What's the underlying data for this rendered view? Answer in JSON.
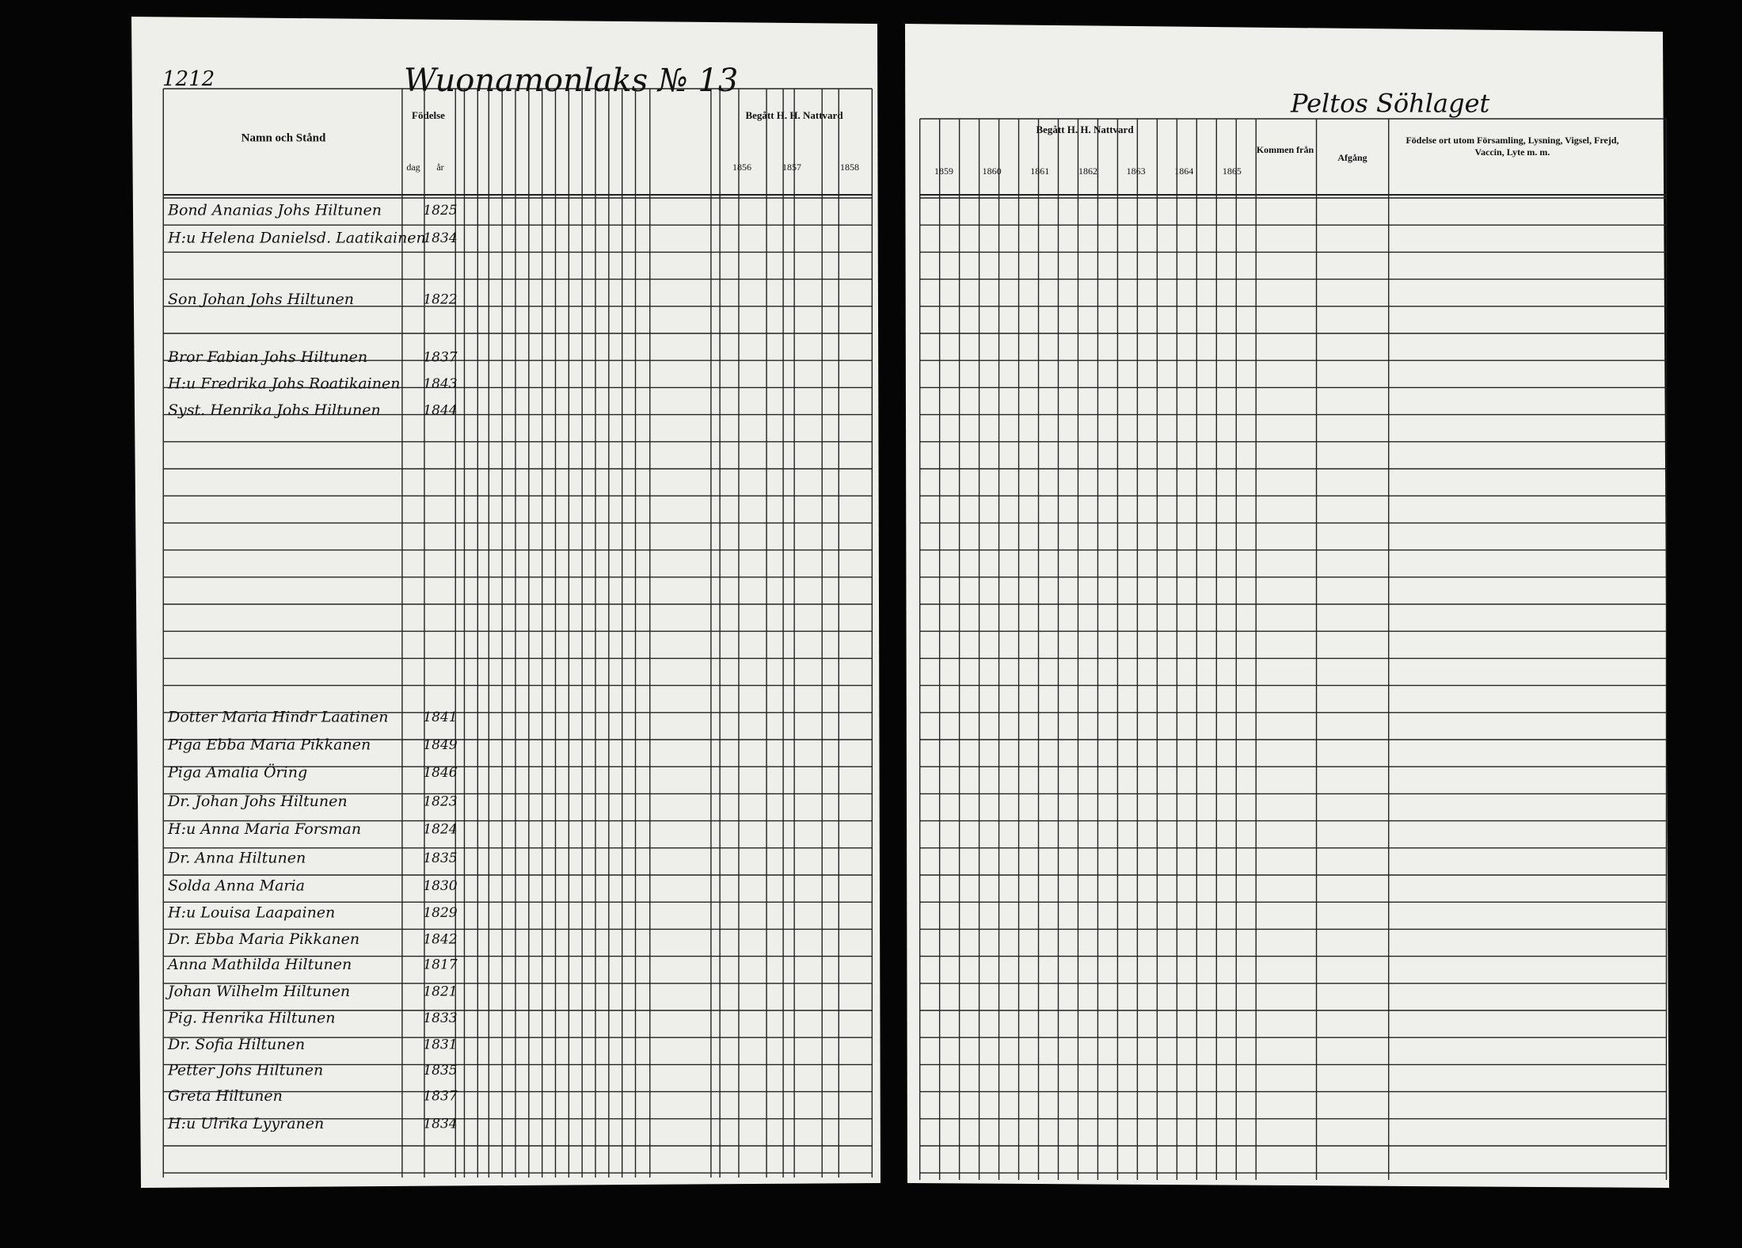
{
  "header": {
    "page_number": "1212",
    "village": "Wuonamonlaks № 13",
    "household": "Peltos Söhlaget"
  },
  "left_columns": {
    "name": "Namn och Stånd",
    "birth": "Födelse",
    "day": "dag",
    "year": "år",
    "communion": "Begått H. H. Nattvard",
    "years": [
      "1856",
      "1857",
      "1858"
    ]
  },
  "right_columns": {
    "communion": "Begått H. H. Nattvard",
    "years": [
      "1859",
      "1860",
      "1861",
      "1862",
      "1863",
      "1864",
      "1865"
    ],
    "came_from": "Kommen från",
    "departure": "Afgång",
    "notes": "Födelse ort utom Församling, Lysning, Vigsel, Frejd, Vaccin, Lyte m. m."
  },
  "rows": [
    {
      "name": "Bond Ananias Johs Hiltunen",
      "year": "1825"
    },
    {
      "name": "H:u Helena Danielsd. Laatikainen",
      "year": "1834"
    },
    {
      "name": "Son Johan Johs Hiltunen",
      "year": "1822"
    },
    {
      "name": "Bror Fabian Johs Hiltunen",
      "year": "1837"
    },
    {
      "name": "H:u Fredrika Johs Roatikainen",
      "year": "1843"
    },
    {
      "name": "Syst. Henrika Johs Hiltunen",
      "year": "1844"
    },
    {
      "name": "Dotter Maria Hindr Laatinen",
      "year": "1841"
    },
    {
      "name": "Piga Ebba Maria Pikkanen",
      "year": "1849"
    },
    {
      "name": "Piga Amalia Öring",
      "year": "1846"
    },
    {
      "name": "Dr. Johan Johs Hiltunen",
      "year": "1823"
    },
    {
      "name": "H:u Anna Maria Forsman",
      "year": "1824"
    },
    {
      "name": "Dr. Anna Hiltunen",
      "year": "1835"
    },
    {
      "name": "Solda Anna Maria",
      "year": "1830"
    },
    {
      "name": "H:u Louisa Laapainen",
      "year": "1829"
    },
    {
      "name": "Dr. Ebba Maria Pikkanen",
      "year": "1842"
    },
    {
      "name": "Anna Mathilda Hiltunen",
      "year": "1817"
    },
    {
      "name": "Johan Wilhelm Hiltunen",
      "year": "1821"
    },
    {
      "name": "Pig. Henrika Hiltunen",
      "year": "1833"
    },
    {
      "name": "Dr. Sofia Hiltunen",
      "year": "1831"
    },
    {
      "name": "Petter Johs Hiltunen",
      "year": "1835"
    },
    {
      "name": "Greta Hiltunen",
      "year": "1837"
    },
    {
      "name": "H:u Ulrika Lyyranen",
      "year": "1834"
    }
  ]
}
